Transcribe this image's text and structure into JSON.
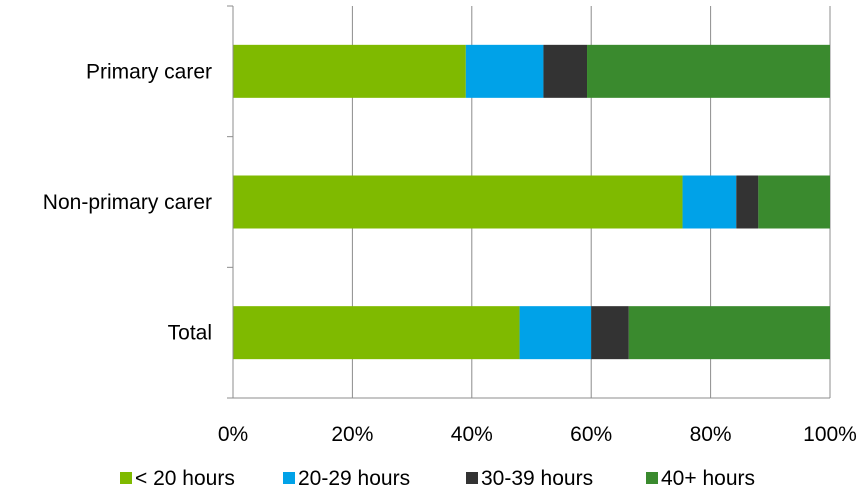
{
  "chart_data": {
    "type": "bar",
    "orientation": "horizontal",
    "stacked": "percent",
    "categories": [
      "Primary carer",
      "Non-primary carer",
      "Total"
    ],
    "series": [
      {
        "name": "< 20 hours",
        "color": "#7fba00",
        "values": [
          39,
          75.3,
          48
        ]
      },
      {
        "name": "20-29 hours",
        "color": "#00a2e8",
        "values": [
          13,
          9,
          12
        ]
      },
      {
        "name": "30-39 hours",
        "color": "#333333",
        "values": [
          7.3,
          3.7,
          6.3
        ]
      },
      {
        "name": "40+ hours",
        "color": "#3a8a2e",
        "values": [
          40.7,
          12,
          33.7
        ]
      }
    ],
    "xlim": [
      0,
      100
    ],
    "x_ticks": [
      0,
      20,
      40,
      60,
      80,
      100
    ],
    "x_tick_labels": [
      "0%",
      "20%",
      "40%",
      "60%",
      "80%",
      "100%"
    ],
    "title": "",
    "xlabel": "",
    "ylabel": "",
    "grid": "vertical",
    "legend_position": "bottom"
  }
}
